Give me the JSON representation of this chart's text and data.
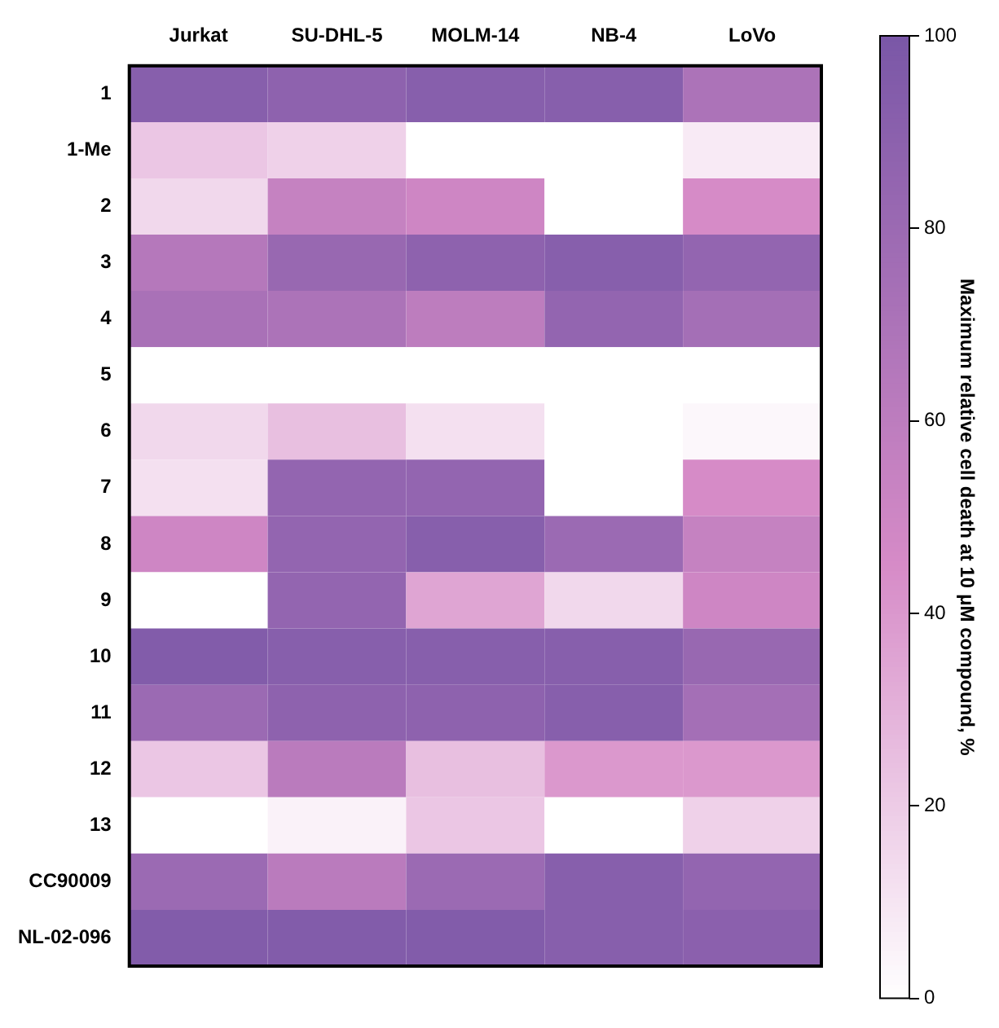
{
  "chart_data": {
    "type": "heatmap",
    "clabel": "Maximum relative cell death at 10 μM compound, %",
    "categories": [
      "Jurkat",
      "SU-DHL-5",
      "MOLM-14",
      "NB-4",
      "LoVo"
    ],
    "y_categories": [
      "1",
      "1-Me",
      "2",
      "3",
      "4",
      "5",
      "6",
      "7",
      "8",
      "9",
      "10",
      "11",
      "12",
      "13",
      "CC90009",
      "NL-02-096"
    ],
    "cells": [
      [
        92,
        88,
        92,
        92,
        70
      ],
      [
        22,
        18,
        0,
        0,
        8
      ],
      [
        15,
        55,
        50,
        0,
        45
      ],
      [
        65,
        82,
        88,
        92,
        85
      ],
      [
        72,
        70,
        60,
        85,
        75
      ],
      [
        0,
        0,
        0,
        0,
        0
      ],
      [
        15,
        25,
        12,
        0,
        3
      ],
      [
        12,
        85,
        85,
        0,
        45
      ],
      [
        50,
        85,
        92,
        80,
        55
      ],
      [
        0,
        85,
        35,
        15,
        50
      ],
      [
        95,
        92,
        92,
        92,
        82
      ],
      [
        80,
        88,
        88,
        92,
        75
      ],
      [
        22,
        62,
        25,
        40,
        40
      ],
      [
        0,
        5,
        22,
        0,
        18
      ],
      [
        80,
        62,
        80,
        92,
        85
      ],
      [
        95,
        95,
        95,
        92,
        90
      ]
    ],
    "clim": [
      0,
      100
    ],
    "cticks": [
      0,
      20,
      40,
      60,
      80,
      100
    ]
  }
}
